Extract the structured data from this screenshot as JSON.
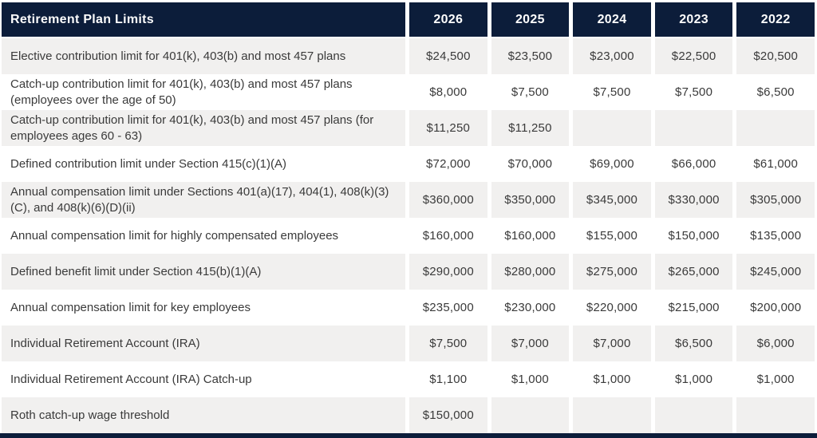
{
  "colors": {
    "header_bg": "#0C1D3A",
    "header_text": "#FCFCFC",
    "row_alt_bg": "#F1F0EF",
    "row_bg": "#FFFFFF",
    "body_text": "#3A3A3A"
  },
  "table": {
    "title": "Retirement Plan Limits",
    "columns": [
      "2026",
      "2025",
      "2024",
      "2023",
      "2022"
    ],
    "rows": [
      {
        "label": "Elective contribution limit for 401(k), 403(b) and most 457 plans",
        "values": [
          "$24,500",
          "$23,500",
          "$23,000",
          "$22,500",
          "$20,500"
        ]
      },
      {
        "label": "Catch-up contribution limit for 401(k), 403(b) and most 457 plans (employees over the age of 50)",
        "values": [
          "$8,000",
          "$7,500",
          "$7,500",
          "$7,500",
          "$6,500"
        ]
      },
      {
        "label": "Catch-up contribution limit for 401(k), 403(b) and most 457 plans (for employees ages 60 - 63)",
        "values": [
          "$11,250",
          "$11,250",
          "",
          "",
          ""
        ]
      },
      {
        "label": "Defined contribution limit under Section 415(c)(1)(A)",
        "values": [
          "$72,000",
          "$70,000",
          "$69,000",
          "$66,000",
          "$61,000"
        ]
      },
      {
        "label": "Annual compensation limit under Sections 401(a)(17), 404(1), 408(k)(3)(C), and 408(k)(6)(D)(ii)",
        "values": [
          "$360,000",
          "$350,000",
          "$345,000",
          "$330,000",
          "$305,000"
        ]
      },
      {
        "label": "Annual compensation limit for highly compensated employees",
        "values": [
          "$160,000",
          "$160,000",
          "$155,000",
          "$150,000",
          "$135,000"
        ]
      },
      {
        "label": "Defined benefit limit under Section 415(b)(1)(A)",
        "values": [
          "$290,000",
          "$280,000",
          "$275,000",
          "$265,000",
          "$245,000"
        ]
      },
      {
        "label": "Annual compensation limit for key employees",
        "values": [
          "$235,000",
          "$230,000",
          "$220,000",
          "$215,000",
          "$200,000"
        ]
      },
      {
        "label": "Individual Retirement Account (IRA)",
        "values": [
          "$7,500",
          "$7,000",
          "$7,000",
          "$6,500",
          "$6,000"
        ]
      },
      {
        "label": "Individual Retirement Account (IRA) Catch-up",
        "values": [
          "$1,100",
          "$1,000",
          "$1,000",
          "$1,000",
          "$1,000"
        ]
      },
      {
        "label": "Roth catch-up wage threshold",
        "values": [
          "$150,000",
          "",
          "",
          "",
          ""
        ]
      }
    ]
  },
  "chart_data": {
    "type": "table",
    "title": "Retirement Plan Limits",
    "columns": [
      "Retirement Plan Limits",
      "2026",
      "2025",
      "2024",
      "2023",
      "2022"
    ],
    "rows": [
      [
        "Elective contribution limit for 401(k), 403(b) and most 457 plans",
        "$24,500",
        "$23,500",
        "$23,000",
        "$22,500",
        "$20,500"
      ],
      [
        "Catch-up contribution limit for 401(k), 403(b) and most 457 plans (employees over the age of 50)",
        "$8,000",
        "$7,500",
        "$7,500",
        "$7,500",
        "$6,500"
      ],
      [
        "Catch-up contribution limit for 401(k), 403(b) and most 457 plans (for employees ages 60 - 63)",
        "$11,250",
        "$11,250",
        "",
        "",
        ""
      ],
      [
        "Defined contribution limit under Section 415(c)(1)(A)",
        "$72,000",
        "$70,000",
        "$69,000",
        "$66,000",
        "$61,000"
      ],
      [
        "Annual compensation limit under Sections 401(a)(17), 404(1), 408(k)(3)(C), and 408(k)(6)(D)(ii)",
        "$360,000",
        "$350,000",
        "$345,000",
        "$330,000",
        "$305,000"
      ],
      [
        "Annual compensation limit for highly compensated employees",
        "$160,000",
        "$160,000",
        "$155,000",
        "$150,000",
        "$135,000"
      ],
      [
        "Defined benefit limit under Section 415(b)(1)(A)",
        "$290,000",
        "$280,000",
        "$275,000",
        "$265,000",
        "$245,000"
      ],
      [
        "Annual compensation limit for key employees",
        "$235,000",
        "$230,000",
        "$220,000",
        "$215,000",
        "$200,000"
      ],
      [
        "Individual Retirement Account (IRA)",
        "$7,500",
        "$7,000",
        "$7,000",
        "$6,500",
        "$6,000"
      ],
      [
        "Individual Retirement Account (IRA) Catch-up",
        "$1,100",
        "$1,000",
        "$1,000",
        "$1,000",
        "$1,000"
      ],
      [
        "Roth catch-up wage threshold",
        "$150,000",
        "",
        "",
        "",
        ""
      ]
    ],
    "layout": {
      "header_position": "top-row",
      "alternating_rows": true,
      "value_alignment": "center"
    }
  }
}
